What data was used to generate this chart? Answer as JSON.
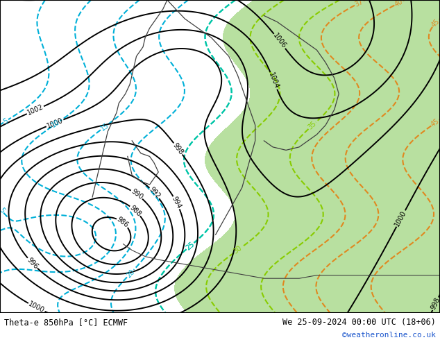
{
  "title_left": "Theta-e 850hPa [°C] ECMWF",
  "title_right": "We 25-09-2024 00:00 UTC (18+06)",
  "credit": "©weatheronline.co.uk",
  "bg_color": "#c8cdd4",
  "land_color_warm": "#b8e0a0",
  "land_color_cold": "#c0c4c8",
  "contour_color_pressure": "#000000",
  "contour_color_theta_cold": "#00b0d8",
  "contour_color_theta_teal": "#00c8a0",
  "contour_color_theta_green": "#88cc00",
  "contour_color_theta_yellow": "#cccc00",
  "contour_color_theta_orange": "#e08820",
  "figsize": [
    6.34,
    4.9
  ],
  "dpi": 100
}
